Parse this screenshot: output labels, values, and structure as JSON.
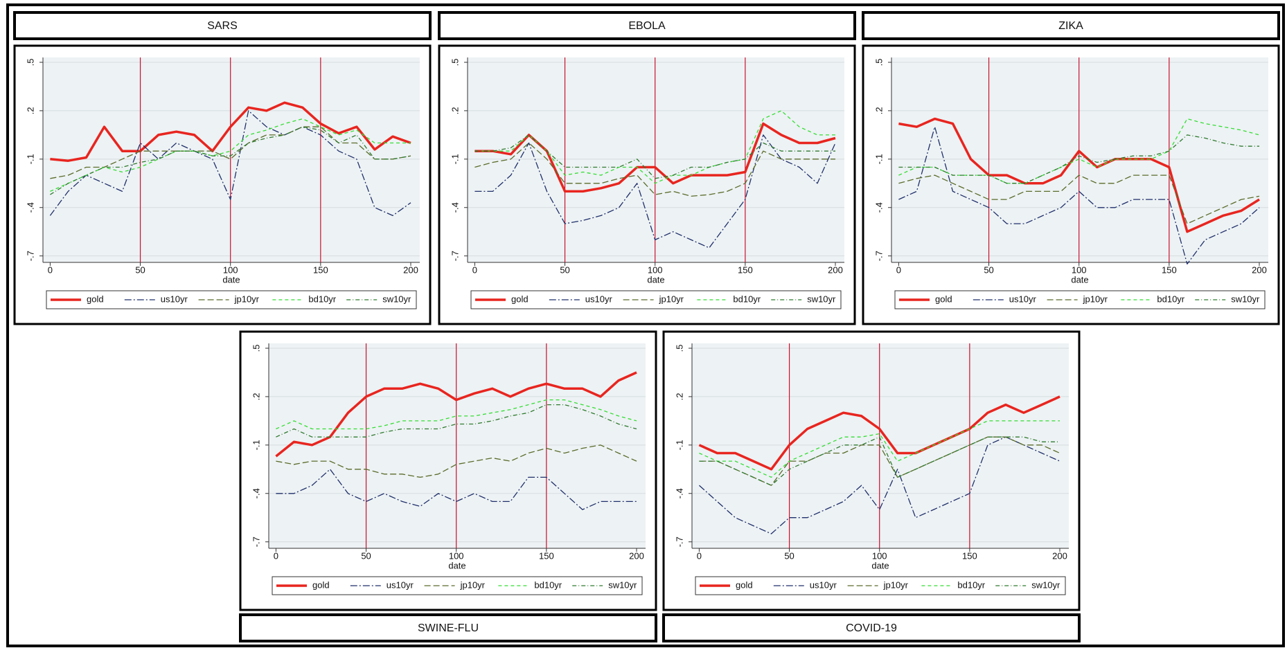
{
  "chart_data": [
    {
      "type": "line",
      "title": "SARS",
      "x_label": "date",
      "x": [
        0,
        10,
        20,
        30,
        40,
        50,
        60,
        70,
        80,
        90,
        100,
        110,
        120,
        130,
        140,
        150,
        160,
        170,
        180,
        190,
        200
      ],
      "xlim": [
        -4,
        205
      ],
      "xticks": [
        0,
        50,
        100,
        150,
        200
      ],
      "ylim": [
        -0.74,
        0.53
      ],
      "yticks": [
        {
          "value": -0.7,
          "label": "-.7"
        },
        {
          "value": -0.4,
          "label": "-.4"
        },
        {
          "value": -0.1,
          "label": "-.1"
        },
        {
          "value": 0.2,
          "label": ".2"
        },
        {
          "value": 0.5,
          "label": ".5"
        }
      ],
      "grid": true,
      "xlines": [
        50,
        100,
        150
      ],
      "xline_color": "#c8102e",
      "series": [
        {
          "name": "gold",
          "color": "#e8251f",
          "style": "solid",
          "values": [
            -0.1,
            -0.11,
            -0.09,
            0.1,
            -0.05,
            -0.05,
            0.05,
            0.07,
            0.05,
            -0.05,
            0.1,
            0.22,
            0.2,
            0.25,
            0.22,
            0.12,
            0.06,
            0.1,
            -0.04,
            0.04,
            0.0
          ]
        },
        {
          "name": "us10yr",
          "color": "#1f2f6b",
          "style": "dashdot",
          "values": [
            -0.45,
            -0.3,
            -0.2,
            -0.25,
            -0.3,
            0.0,
            -0.1,
            0.0,
            -0.05,
            -0.1,
            -0.35,
            0.2,
            0.1,
            0.05,
            0.1,
            0.05,
            -0.05,
            -0.1,
            -0.4,
            -0.45,
            -0.37
          ]
        },
        {
          "name": "jp10yr",
          "color": "#5a6b2a",
          "style": "longdash",
          "values": [
            -0.22,
            -0.2,
            -0.15,
            -0.15,
            -0.1,
            -0.05,
            -0.05,
            -0.05,
            -0.05,
            -0.05,
            -0.1,
            0.0,
            0.05,
            0.05,
            0.1,
            0.1,
            0.0,
            0.0,
            -0.1,
            -0.1,
            -0.08
          ]
        },
        {
          "name": "bd10yr",
          "color": "#33dd33",
          "style": "dash",
          "values": [
            -0.3,
            -0.25,
            -0.2,
            -0.15,
            -0.18,
            -0.15,
            -0.1,
            -0.05,
            -0.05,
            -0.08,
            -0.05,
            0.05,
            0.08,
            0.12,
            0.15,
            0.1,
            0.05,
            0.08,
            0.0,
            0.0,
            0.0
          ]
        },
        {
          "name": "sw10yr",
          "color": "#2f7a2f",
          "style": "shortdashdot",
          "values": [
            -0.32,
            -0.25,
            -0.2,
            -0.15,
            -0.15,
            -0.12,
            -0.1,
            -0.05,
            -0.05,
            -0.08,
            -0.08,
            0.0,
            0.03,
            0.05,
            0.1,
            0.08,
            0.0,
            0.05,
            -0.1,
            -0.1,
            -0.08
          ]
        }
      ]
    },
    {
      "type": "line",
      "title": "EBOLA",
      "x_label": "date",
      "x": [
        0,
        10,
        20,
        30,
        40,
        50,
        60,
        70,
        80,
        90,
        100,
        110,
        120,
        130,
        140,
        150,
        160,
        170,
        180,
        190,
        200
      ],
      "xlim": [
        -4,
        205
      ],
      "xticks": [
        0,
        50,
        100,
        150,
        200
      ],
      "ylim": [
        -0.74,
        0.53
      ],
      "yticks": [
        {
          "value": -0.7,
          "label": "-.7"
        },
        {
          "value": -0.4,
          "label": "-.4"
        },
        {
          "value": -0.1,
          "label": "-.1"
        },
        {
          "value": 0.2,
          "label": ".2"
        },
        {
          "value": 0.5,
          "label": ".5"
        }
      ],
      "grid": true,
      "xlines": [
        50,
        100,
        150
      ],
      "xline_color": "#c8102e",
      "series": [
        {
          "name": "gold",
          "color": "#e8251f",
          "style": "solid",
          "values": [
            -0.05,
            -0.05,
            -0.07,
            0.05,
            -0.05,
            -0.3,
            -0.3,
            -0.28,
            -0.25,
            -0.15,
            -0.15,
            -0.25,
            -0.2,
            -0.2,
            -0.2,
            -0.18,
            0.12,
            0.05,
            0.0,
            0.0,
            0.03
          ]
        },
        {
          "name": "us10yr",
          "color": "#1f2f6b",
          "style": "dashdot",
          "values": [
            -0.3,
            -0.3,
            -0.2,
            0.0,
            -0.3,
            -0.5,
            -0.48,
            -0.45,
            -0.4,
            -0.25,
            -0.6,
            -0.55,
            -0.6,
            -0.65,
            -0.5,
            -0.35,
            0.05,
            -0.1,
            -0.15,
            -0.25,
            0.0
          ]
        },
        {
          "name": "jp10yr",
          "color": "#5a6b2a",
          "style": "longdash",
          "values": [
            -0.15,
            -0.12,
            -0.1,
            0.0,
            -0.1,
            -0.25,
            -0.25,
            -0.25,
            -0.22,
            -0.2,
            -0.32,
            -0.3,
            -0.33,
            -0.32,
            -0.3,
            -0.25,
            -0.05,
            -0.1,
            -0.1,
            -0.1,
            -0.1
          ]
        },
        {
          "name": "bd10yr",
          "color": "#33dd33",
          "style": "dash",
          "values": [
            -0.05,
            -0.05,
            -0.05,
            0.05,
            -0.05,
            -0.2,
            -0.18,
            -0.2,
            -0.15,
            -0.15,
            -0.25,
            -0.2,
            -0.2,
            -0.15,
            -0.12,
            -0.1,
            0.15,
            0.2,
            0.1,
            0.05,
            0.05
          ]
        },
        {
          "name": "sw10yr",
          "color": "#2f7a2f",
          "style": "shortdashdot",
          "values": [
            -0.05,
            -0.05,
            -0.03,
            0.05,
            -0.05,
            -0.15,
            -0.15,
            -0.15,
            -0.15,
            -0.1,
            -0.22,
            -0.2,
            -0.15,
            -0.15,
            -0.12,
            -0.1,
            0.0,
            -0.05,
            -0.05,
            -0.05,
            -0.05
          ]
        }
      ]
    },
    {
      "type": "line",
      "title": "ZIKA",
      "x_label": "date",
      "x": [
        0,
        10,
        20,
        30,
        40,
        50,
        60,
        70,
        80,
        90,
        100,
        110,
        120,
        130,
        140,
        150,
        160,
        170,
        180,
        190,
        200
      ],
      "xlim": [
        -4,
        205
      ],
      "xticks": [
        0,
        50,
        100,
        150,
        200
      ],
      "ylim": [
        -0.74,
        0.53
      ],
      "yticks": [
        {
          "value": -0.7,
          "label": "-.7"
        },
        {
          "value": -0.4,
          "label": "-.4"
        },
        {
          "value": -0.1,
          "label": "-.1"
        },
        {
          "value": 0.2,
          "label": ".2"
        },
        {
          "value": 0.5,
          "label": ".5"
        }
      ],
      "grid": true,
      "xlines": [
        50,
        100,
        150
      ],
      "xline_color": "#c8102e",
      "series": [
        {
          "name": "gold",
          "color": "#e8251f",
          "style": "solid",
          "values": [
            0.12,
            0.1,
            0.15,
            0.12,
            -0.1,
            -0.2,
            -0.2,
            -0.25,
            -0.25,
            -0.2,
            -0.05,
            -0.15,
            -0.1,
            -0.1,
            -0.1,
            -0.15,
            -0.55,
            -0.5,
            -0.45,
            -0.42,
            -0.35
          ]
        },
        {
          "name": "us10yr",
          "color": "#1f2f6b",
          "style": "dashdot",
          "values": [
            -0.35,
            -0.3,
            0.1,
            -0.3,
            -0.35,
            -0.4,
            -0.5,
            -0.5,
            -0.45,
            -0.4,
            -0.3,
            -0.4,
            -0.4,
            -0.35,
            -0.35,
            -0.35,
            -0.75,
            -0.6,
            -0.55,
            -0.5,
            -0.4
          ]
        },
        {
          "name": "jp10yr",
          "color": "#5a6b2a",
          "style": "longdash",
          "values": [
            -0.25,
            -0.22,
            -0.2,
            -0.25,
            -0.3,
            -0.35,
            -0.35,
            -0.3,
            -0.3,
            -0.3,
            -0.2,
            -0.25,
            -0.25,
            -0.2,
            -0.2,
            -0.2,
            -0.5,
            -0.45,
            -0.4,
            -0.35,
            -0.33
          ]
        },
        {
          "name": "bd10yr",
          "color": "#33dd33",
          "style": "dash",
          "values": [
            -0.2,
            -0.15,
            -0.15,
            -0.2,
            -0.2,
            -0.2,
            -0.25,
            -0.25,
            -0.2,
            -0.15,
            -0.1,
            -0.15,
            -0.1,
            -0.1,
            -0.1,
            -0.05,
            0.15,
            0.12,
            0.1,
            0.08,
            0.05
          ]
        },
        {
          "name": "sw10yr",
          "color": "#2f7a2f",
          "style": "shortdashdot",
          "values": [
            -0.15,
            -0.15,
            -0.15,
            -0.2,
            -0.2,
            -0.2,
            -0.25,
            -0.25,
            -0.2,
            -0.15,
            -0.08,
            -0.12,
            -0.1,
            -0.08,
            -0.08,
            -0.05,
            0.05,
            0.03,
            0.0,
            -0.02,
            -0.02
          ]
        }
      ]
    },
    {
      "type": "line",
      "title": "SWINE-FLU",
      "x_label": "date",
      "x": [
        0,
        10,
        20,
        30,
        40,
        50,
        60,
        70,
        80,
        90,
        100,
        110,
        120,
        130,
        140,
        150,
        160,
        170,
        180,
        190,
        200
      ],
      "xlim": [
        -4,
        205
      ],
      "xticks": [
        0,
        50,
        100,
        150,
        200
      ],
      "ylim": [
        -0.74,
        0.53
      ],
      "yticks": [
        {
          "value": -0.7,
          "label": "-.7"
        },
        {
          "value": -0.4,
          "label": "-.4"
        },
        {
          "value": -0.1,
          "label": "-.1"
        },
        {
          "value": 0.2,
          "label": ".2"
        },
        {
          "value": 0.5,
          "label": ".5"
        }
      ],
      "grid": true,
      "xlines": [
        50,
        100,
        150
      ],
      "xline_color": "#c8102e",
      "series": [
        {
          "name": "gold",
          "color": "#e8251f",
          "style": "solid",
          "values": [
            -0.17,
            -0.08,
            -0.1,
            -0.05,
            0.1,
            0.2,
            0.25,
            0.25,
            0.28,
            0.25,
            0.18,
            0.22,
            0.25,
            0.2,
            0.25,
            0.28,
            0.25,
            0.25,
            0.2,
            0.3,
            0.35
          ]
        },
        {
          "name": "us10yr",
          "color": "#1f2f6b",
          "style": "dashdot",
          "values": [
            -0.4,
            -0.4,
            -0.35,
            -0.25,
            -0.4,
            -0.45,
            -0.4,
            -0.45,
            -0.48,
            -0.4,
            -0.45,
            -0.4,
            -0.45,
            -0.45,
            -0.3,
            -0.3,
            -0.4,
            -0.5,
            -0.45,
            -0.45,
            -0.45
          ]
        },
        {
          "name": "jp10yr",
          "color": "#5a6b2a",
          "style": "longdash",
          "values": [
            -0.2,
            -0.22,
            -0.2,
            -0.2,
            -0.25,
            -0.25,
            -0.28,
            -0.28,
            -0.3,
            -0.28,
            -0.22,
            -0.2,
            -0.18,
            -0.2,
            -0.15,
            -0.12,
            -0.15,
            -0.12,
            -0.1,
            -0.15,
            -0.2
          ]
        },
        {
          "name": "bd10yr",
          "color": "#33dd33",
          "style": "dash",
          "values": [
            0.0,
            0.05,
            0.0,
            0.0,
            0.0,
            0.0,
            0.02,
            0.05,
            0.05,
            0.05,
            0.08,
            0.08,
            0.1,
            0.12,
            0.15,
            0.18,
            0.18,
            0.15,
            0.12,
            0.08,
            0.05
          ]
        },
        {
          "name": "sw10yr",
          "color": "#2f7a2f",
          "style": "shortdashdot",
          "values": [
            -0.05,
            0.0,
            -0.05,
            -0.05,
            -0.05,
            -0.05,
            -0.02,
            0.0,
            0.0,
            0.0,
            0.03,
            0.03,
            0.05,
            0.08,
            0.1,
            0.15,
            0.15,
            0.12,
            0.08,
            0.03,
            0.0
          ]
        }
      ]
    },
    {
      "type": "line",
      "title": "COVID-19",
      "x_label": "date",
      "x": [
        0,
        10,
        20,
        30,
        40,
        50,
        60,
        70,
        80,
        90,
        100,
        110,
        120,
        130,
        140,
        150,
        160,
        170,
        180,
        190,
        200
      ],
      "xlim": [
        -4,
        205
      ],
      "xticks": [
        0,
        50,
        100,
        150,
        200
      ],
      "ylim": [
        -0.74,
        0.53
      ],
      "yticks": [
        {
          "value": -0.7,
          "label": "-.7"
        },
        {
          "value": -0.4,
          "label": "-.4"
        },
        {
          "value": -0.1,
          "label": "-.1"
        },
        {
          "value": 0.2,
          "label": ".2"
        },
        {
          "value": 0.5,
          "label": ".5"
        }
      ],
      "grid": true,
      "xlines": [
        50,
        100,
        150
      ],
      "xline_color": "#c8102e",
      "series": [
        {
          "name": "gold",
          "color": "#e8251f",
          "style": "solid",
          "values": [
            -0.1,
            -0.15,
            -0.15,
            -0.2,
            -0.25,
            -0.1,
            0.0,
            0.05,
            0.1,
            0.08,
            0.0,
            -0.15,
            -0.15,
            -0.1,
            -0.05,
            0.0,
            0.1,
            0.15,
            0.1,
            0.15,
            0.2
          ]
        },
        {
          "name": "us10yr",
          "color": "#1f2f6b",
          "style": "dashdot",
          "values": [
            -0.35,
            -0.45,
            -0.55,
            -0.6,
            -0.65,
            -0.55,
            -0.55,
            -0.5,
            -0.45,
            -0.35,
            -0.5,
            -0.25,
            -0.55,
            -0.5,
            -0.45,
            -0.4,
            -0.1,
            -0.05,
            -0.1,
            -0.15,
            -0.2
          ]
        },
        {
          "name": "jp10yr",
          "color": "#5a6b2a",
          "style": "longdash",
          "values": [
            -0.2,
            -0.2,
            -0.25,
            -0.3,
            -0.35,
            -0.2,
            -0.2,
            -0.15,
            -0.15,
            -0.1,
            -0.1,
            -0.3,
            -0.25,
            -0.2,
            -0.15,
            -0.1,
            -0.05,
            -0.05,
            -0.1,
            -0.1,
            -0.15
          ]
        },
        {
          "name": "bd10yr",
          "color": "#33dd33",
          "style": "dash",
          "values": [
            -0.15,
            -0.2,
            -0.2,
            -0.25,
            -0.3,
            -0.2,
            -0.15,
            -0.1,
            -0.05,
            -0.05,
            -0.03,
            -0.2,
            -0.15,
            -0.1,
            -0.05,
            0.0,
            0.05,
            0.05,
            0.05,
            0.05,
            0.05
          ]
        },
        {
          "name": "sw10yr",
          "color": "#2f7a2f",
          "style": "shortdashdot",
          "values": [
            -0.2,
            -0.2,
            -0.25,
            -0.3,
            -0.35,
            -0.25,
            -0.2,
            -0.15,
            -0.1,
            -0.1,
            -0.05,
            -0.3,
            -0.25,
            -0.2,
            -0.15,
            -0.1,
            -0.05,
            -0.05,
            -0.05,
            -0.08,
            -0.08
          ]
        }
      ]
    }
  ]
}
